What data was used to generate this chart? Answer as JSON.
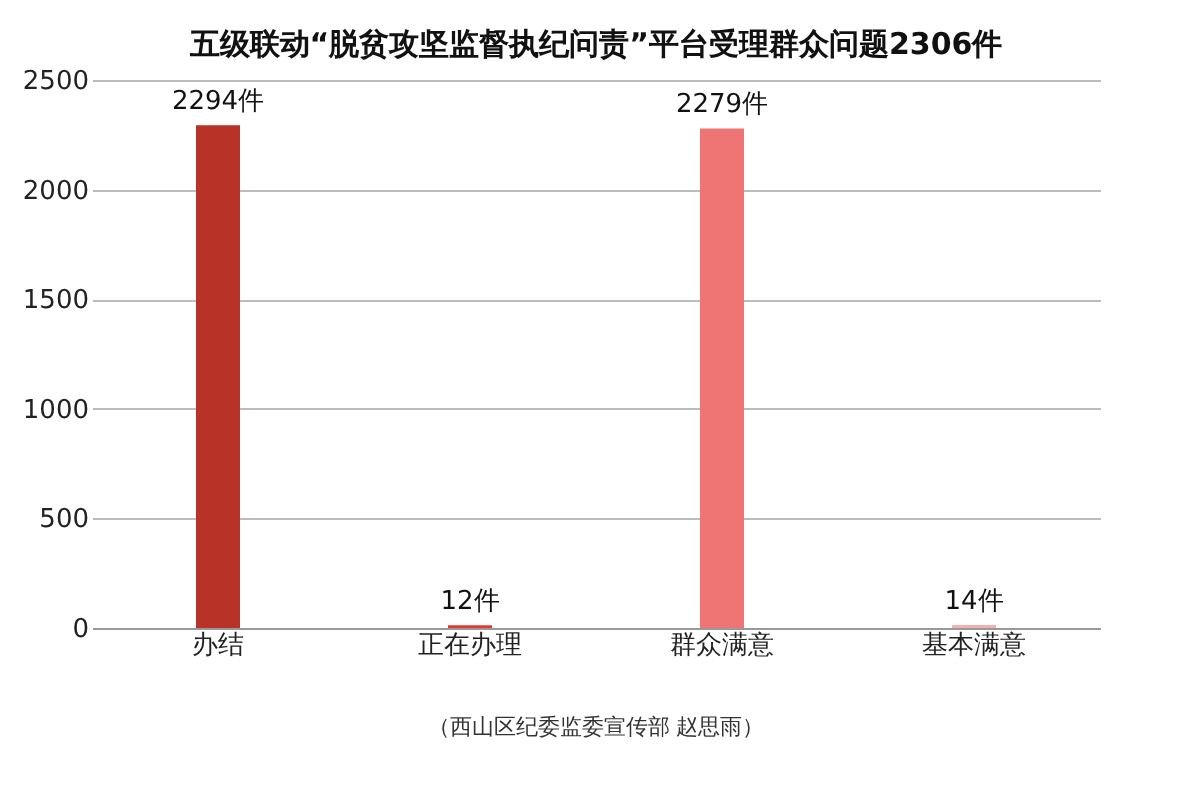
{
  "chart_data": {
    "type": "bar",
    "title": "五级联动“脱贫攻坚监督执纪问责”平台受理群众问题2306件",
    "categories": [
      "办结",
      "正在办理",
      "群众满意",
      "基本满意"
    ],
    "values": [
      2294,
      12,
      2279,
      14
    ],
    "value_labels": [
      "2294件",
      "12件",
      "2279件",
      "14件"
    ],
    "colors": [
      "#b83228",
      "#e23a2e",
      "#ef7474",
      "#f3b2b0"
    ],
    "ylim": [
      0,
      2500
    ],
    "yticks": [
      0,
      500,
      1000,
      1500,
      2000,
      2500
    ],
    "grid": "y",
    "legend": false,
    "annotations": [
      "（西山区纪委监委宣传部 赵思雨）"
    ]
  }
}
